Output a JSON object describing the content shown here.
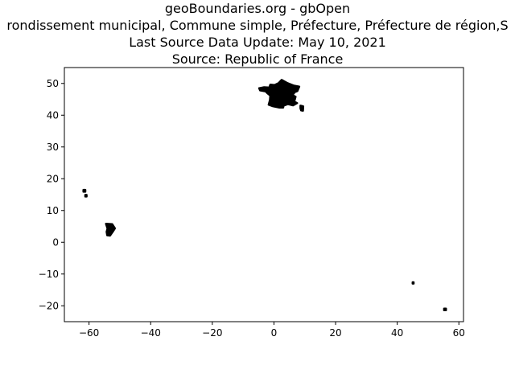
{
  "title": {
    "lines": [
      "geoBoundaries.org - gbOpen",
      "rondissement municipal, Commune simple, Préfecture, Préfecture de région,S",
      "Last Source Data Update: May 10, 2021",
      "Source: Republic of France"
    ]
  },
  "chart_data": {
    "type": "scatter",
    "title": "geoBoundaries.org - gbOpen",
    "xlabel": "",
    "ylabel": "",
    "xlim": [
      -68,
      61.5
    ],
    "ylim": [
      -25,
      55
    ],
    "xticks": [
      -60,
      -40,
      -20,
      0,
      20,
      40,
      60
    ],
    "yticks": [
      -20,
      -10,
      0,
      10,
      20,
      30,
      40,
      50
    ],
    "xtick_labels": [
      "−60",
      "−40",
      "−20",
      "0",
      "20",
      "40",
      "60"
    ],
    "ytick_labels": [
      "−20",
      "−10",
      "0",
      "10",
      "20",
      "30",
      "40",
      "50"
    ],
    "grid": false,
    "fill_color": "#000000",
    "series": [
      {
        "region": "metropolitan",
        "outline": [
          [
            -4.8,
            48.5
          ],
          [
            -3.2,
            48.8
          ],
          [
            -1.5,
            48.7
          ],
          [
            -1.2,
            49.6
          ],
          [
            0.2,
            49.5
          ],
          [
            1.5,
            50.1
          ],
          [
            2.5,
            51.1
          ],
          [
            4.2,
            50.2
          ],
          [
            6.5,
            49.3
          ],
          [
            8.2,
            49.0
          ],
          [
            7.6,
            47.6
          ],
          [
            6.8,
            47.3
          ],
          [
            6.0,
            46.3
          ],
          [
            7.0,
            45.8
          ],
          [
            6.6,
            44.3
          ],
          [
            7.5,
            43.8
          ],
          [
            6.2,
            43.1
          ],
          [
            4.5,
            43.5
          ],
          [
            3.1,
            43.0
          ],
          [
            3.0,
            42.4
          ],
          [
            1.8,
            42.4
          ],
          [
            -0.3,
            42.8
          ],
          [
            -1.7,
            43.3
          ],
          [
            -1.3,
            44.8
          ],
          [
            -1.2,
            46.2
          ],
          [
            -2.1,
            46.9
          ],
          [
            -2.7,
            47.5
          ],
          [
            -4.5,
            47.8
          ]
        ]
      },
      {
        "region": "corsica",
        "outline": [
          [
            8.6,
            43.0
          ],
          [
            9.5,
            42.8
          ],
          [
            9.4,
            41.4
          ],
          [
            8.8,
            41.5
          ],
          [
            8.6,
            42.2
          ]
        ]
      },
      {
        "region": "guadeloupe",
        "outline": [
          [
            -61.8,
            16.5
          ],
          [
            -61.2,
            16.5
          ],
          [
            -61.2,
            15.9
          ],
          [
            -61.8,
            15.9
          ]
        ]
      },
      {
        "region": "martinique",
        "outline": [
          [
            -61.2,
            14.9
          ],
          [
            -60.8,
            14.9
          ],
          [
            -60.8,
            14.4
          ],
          [
            -61.2,
            14.4
          ]
        ]
      },
      {
        "region": "french-guiana",
        "outline": [
          [
            -54.5,
            5.8
          ],
          [
            -52.5,
            5.7
          ],
          [
            -51.6,
            4.4
          ],
          [
            -52.3,
            3.3
          ],
          [
            -53.2,
            2.1
          ],
          [
            -54.1,
            2.2
          ],
          [
            -54.3,
            3.3
          ],
          [
            -54.0,
            4.3
          ]
        ]
      },
      {
        "region": "mayotte",
        "outline": [
          [
            45.0,
            -12.6
          ],
          [
            45.3,
            -12.6
          ],
          [
            45.3,
            -13.0
          ],
          [
            45.0,
            -13.0
          ]
        ]
      },
      {
        "region": "reunion",
        "outline": [
          [
            55.2,
            -20.9
          ],
          [
            55.8,
            -20.9
          ],
          [
            55.8,
            -21.4
          ],
          [
            55.2,
            -21.4
          ]
        ]
      }
    ]
  }
}
